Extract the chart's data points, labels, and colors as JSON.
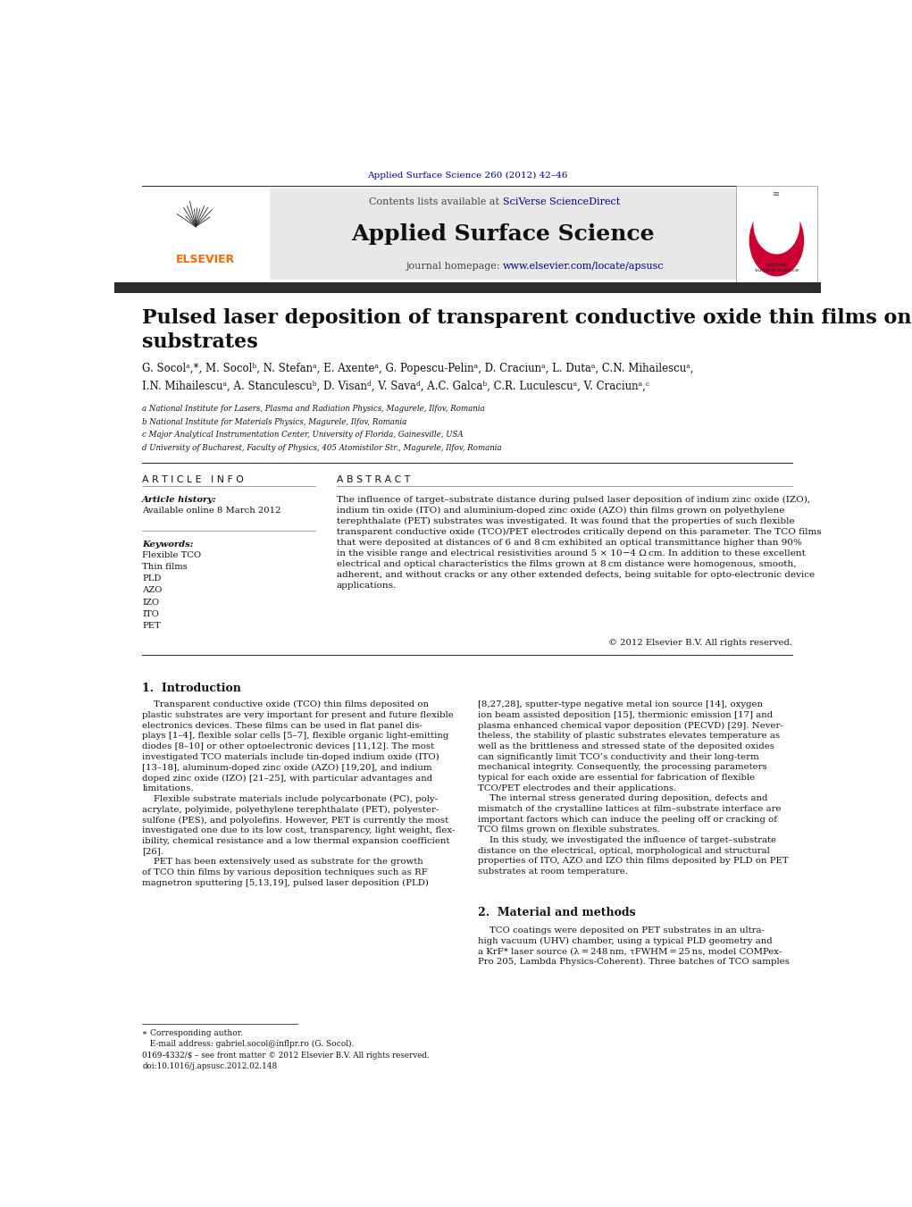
{
  "page_width": 10.21,
  "page_height": 13.51,
  "bg_color": "#ffffff",
  "top_journal_ref": "Applied Surface Science 260 (2012) 42–46",
  "top_journal_ref_color": "#00008B",
  "journal_name": "Applied Surface Science",
  "contents_line": "Contents lists available at SciVerse ScienceDirect",
  "journal_homepage": "journal homepage: www.elsevier.com/locate/apsusc",
  "homepage_url_color": "#00008B",
  "header_bg": "#e8e8e8",
  "dark_bar_color": "#2c2c2c",
  "elsevier_color": "#FF6600",
  "article_title": "Pulsed laser deposition of transparent conductive oxide thin films on flexible\nsubstrates",
  "affil_a": "a National Institute for Lasers, Plasma and Radiation Physics, Magurele, Ilfov, Romania",
  "affil_b": "b National Institute for Materials Physics, Magurele, Ilfov, Romania",
  "affil_c": "c Major Analytical Instrumentation Center, University of Florida, Gainesville, USA",
  "affil_d": "d University of Bucharest, Faculty of Physics, 405 Atomistilor Str., Magurele, Ilfov, Romania",
  "article_info_header": "A R T I C L E   I N F O",
  "abstract_header": "A B S T R A C T",
  "article_history_label": "Article history:",
  "available_online": "Available online 8 March 2012",
  "keywords_label": "Keywords:",
  "keywords": [
    "Flexible TCO",
    "Thin films",
    "PLD",
    "AZO",
    "IZO",
    "ITO",
    "PET"
  ],
  "abstract_text": "The influence of target–substrate distance during pulsed laser deposition of indium zinc oxide (IZO),\nindium tin oxide (ITO) and aluminium-doped zinc oxide (AZO) thin films grown on polyethylene\nterephthalate (PET) substrates was investigated. It was found that the properties of such flexible\ntransparent conductive oxide (TCO)/PET electrodes critically depend on this parameter. The TCO films\nthat were deposited at distances of 6 and 8 cm exhibited an optical transmittance higher than 90%\nin the visible range and electrical resistivities around 5 × 10−4 Ω cm. In addition to these excellent\nelectrical and optical characteristics the films grown at 8 cm distance were homogenous, smooth,\nadherent, and without cracks or any other extended defects, being suitable for opto-electronic device\napplications.",
  "copyright": "© 2012 Elsevier B.V. All rights reserved.",
  "intro_header": "1.  Introduction",
  "intro_col1": "    Transparent conductive oxide (TCO) thin films deposited on\nplastic substrates are very important for present and future flexible\nelectronics devices. These films can be used in flat panel dis-\nplays [1–4], flexible solar cells [5–7], flexible organic light-emitting\ndiodes [8–10] or other optoelectronic devices [11,12]. The most\ninvestigated TCO materials include tin-doped indium oxide (ITO)\n[13–18], aluminum-doped zinc oxide (AZO) [19,20], and indium\ndoped zinc oxide (IZO) [21–25], with particular advantages and\nlimitations.\n    Flexible substrate materials include polycarbonate (PC), poly-\nacrylate, polyimide, polyethylene terephthalate (PET), polyester-\nsulfone (PES), and polyolefins. However, PET is currently the most\ninvestigated one due to its low cost, transparency, light weight, flex-\nibility, chemical resistance and a low thermal expansion coefficient\n[26].\n    PET has been extensively used as substrate for the growth\nof TCO thin films by various deposition techniques such as RF\nmagnetron sputtering [5,13,19], pulsed laser deposition (PLD)",
  "intro_col2": "[8,27,28], sputter-type negative metal ion source [14], oxygen\nion beam assisted deposition [15], thermionic emission [17] and\nplasma enhanced chemical vapor deposition (PECVD) [29]. Never-\ntheless, the stability of plastic substrates elevates temperature as\nwell as the brittleness and stressed state of the deposited oxides\ncan significantly limit TCO’s conductivity and their long-term\nmechanical integrity. Consequently, the processing parameters\ntypical for each oxide are essential for fabrication of flexible\nTCO/PET electrodes and their applications.\n    The internal stress generated during deposition, defects and\nmismatch of the crystalline lattices at film–substrate interface are\nimportant factors which can induce the peeling off or cracking of\nTCO films grown on flexible substrates.\n    In this study, we investigated the influence of target–substrate\ndistance on the electrical, optical, morphological and structural\nproperties of ITO, AZO and IZO thin films deposited by PLD on PET\nsubstrates at room temperature.",
  "methods_header": "2.  Material and methods",
  "methods_text": "    TCO coatings were deposited on PET substrates in an ultra-\nhigh vacuum (UHV) chamber, using a typical PLD geometry and\na KrF* laser source (λ = 248 nm, τFWHM = 25 ns, model COMPex-\nPro 205, Lambda Physics-Coherent). Three batches of TCO samples",
  "footer_left": "0169-4332/$ – see front matter © 2012 Elsevier B.V. All rights reserved.\ndoi:10.1016/j.apsusc.2012.02.148",
  "footnote_text": "∗ Corresponding author.\n   E-mail address: gabriel.socol@inflpr.ro (G. Socol).",
  "ref_color": "#00008B",
  "link_color": "#00008B"
}
